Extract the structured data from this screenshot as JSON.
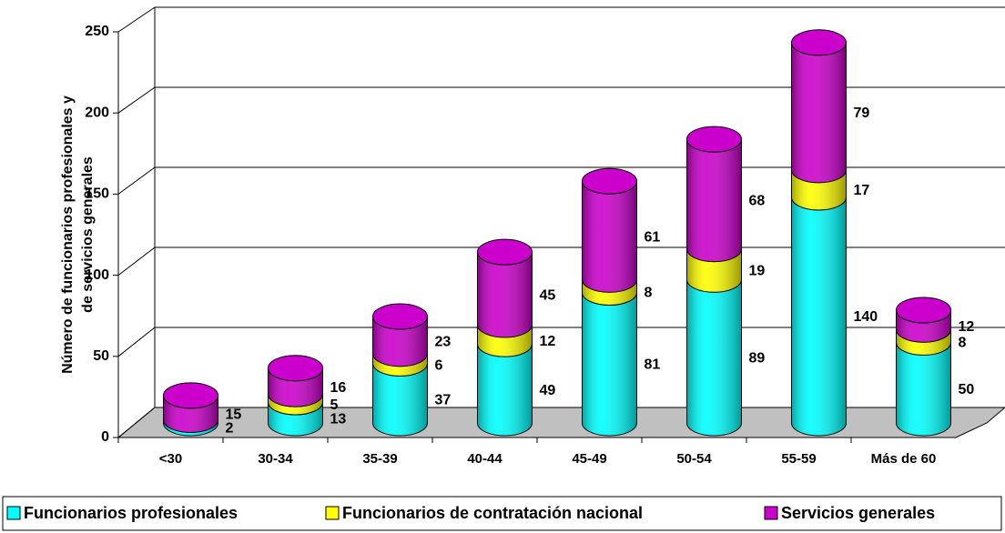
{
  "chart_data": {
    "type": "cylinder-stacked-bar",
    "y_label": [
      "Número de funcionarios profesionales y",
      "de servicios generales"
    ],
    "categories": [
      "<30",
      "30-34",
      "35-39",
      "40-44",
      "45-49",
      "50-54",
      "55-59",
      "Más de 60"
    ],
    "series": [
      {
        "name": "Funcionarios profesionales",
        "color": "#00ffff",
        "values": [
          2,
          13,
          37,
          49,
          81,
          89,
          140,
          50
        ]
      },
      {
        "name": "Funcionarios de contratación nacional",
        "color": "#ffff00",
        "values": [
          null,
          5,
          6,
          12,
          8,
          19,
          17,
          8
        ]
      },
      {
        "name": "Servicios generales",
        "color": "#cc00cc",
        "values": [
          15,
          16,
          23,
          45,
          61,
          68,
          79,
          12
        ]
      }
    ],
    "ylim": [
      0,
      250
    ],
    "yticks": [
      0,
      50,
      100,
      150,
      200,
      250
    ],
    "grid": true,
    "legend": "bottom"
  }
}
